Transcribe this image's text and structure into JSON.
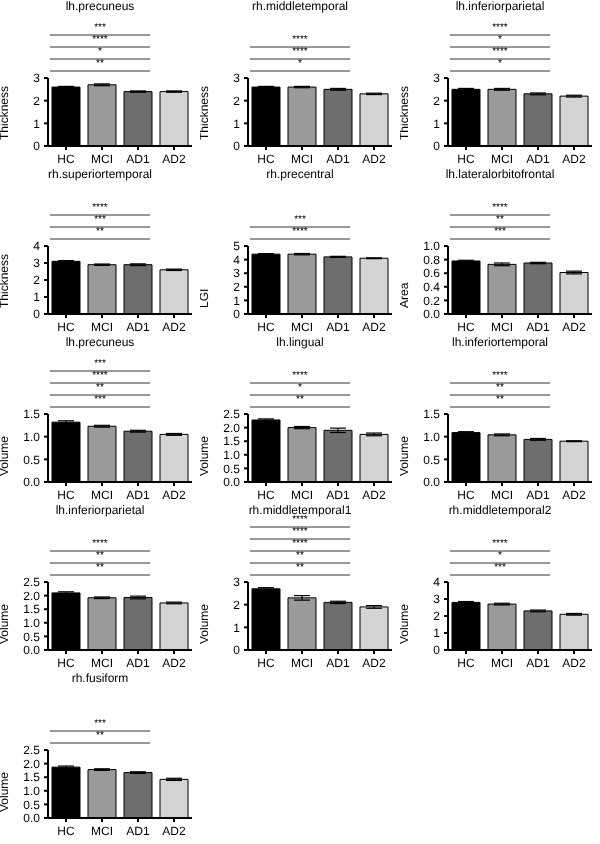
{
  "chart_data": [
    {
      "type": "bar",
      "title": "lh.precuneus",
      "ylabel": "Thickness",
      "categories": [
        "HC",
        "MCI",
        "AD1",
        "AD2"
      ],
      "values": [
        2.6,
        2.7,
        2.4,
        2.4
      ],
      "errors": [
        0.03,
        0.04,
        0.03,
        0.03
      ],
      "colors": [
        "#000000",
        "#9a9a9a",
        "#6e6e6e",
        "#d4d4d4"
      ],
      "ylim": [
        0,
        3
      ],
      "yticks": [
        0,
        1,
        2,
        3
      ],
      "annotations": [
        "***",
        "****",
        "*",
        "**"
      ]
    },
    {
      "type": "bar",
      "title": "rh.middletemporal",
      "ylabel": "Thickness",
      "categories": [
        "HC",
        "MCI",
        "AD1",
        "AD2"
      ],
      "values": [
        2.6,
        2.6,
        2.5,
        2.3
      ],
      "errors": [
        0.03,
        0.03,
        0.04,
        0.03
      ],
      "colors": [
        "#000000",
        "#9a9a9a",
        "#6e6e6e",
        "#d4d4d4"
      ],
      "ylim": [
        0,
        3
      ],
      "yticks": [
        0,
        1,
        2,
        3
      ],
      "annotations": [
        "****",
        "****",
        "*"
      ]
    },
    {
      "type": "bar",
      "title": "lh.inferiorparietal",
      "ylabel": "Thickness",
      "categories": [
        "HC",
        "MCI",
        "AD1",
        "AD2"
      ],
      "values": [
        2.5,
        2.5,
        2.3,
        2.2
      ],
      "errors": [
        0.04,
        0.04,
        0.04,
        0.04
      ],
      "colors": [
        "#000000",
        "#9a9a9a",
        "#6e6e6e",
        "#d4d4d4"
      ],
      "ylim": [
        0,
        3
      ],
      "yticks": [
        0,
        1,
        2,
        3
      ],
      "annotations": [
        "****",
        "*",
        "****",
        "*"
      ]
    },
    {
      "type": "bar",
      "title": "rh.superiortemporal",
      "ylabel": "Thickness",
      "categories": [
        "HC",
        "MCI",
        "AD1",
        "AD2"
      ],
      "values": [
        3.1,
        2.9,
        2.9,
        2.6
      ],
      "errors": [
        0.04,
        0.04,
        0.05,
        0.04
      ],
      "colors": [
        "#000000",
        "#9a9a9a",
        "#6e6e6e",
        "#d4d4d4"
      ],
      "ylim": [
        0,
        4
      ],
      "yticks": [
        0,
        1,
        2,
        3,
        4
      ],
      "annotations": [
        "****",
        "***",
        "**"
      ]
    },
    {
      "type": "bar",
      "title": "rh.precentral",
      "ylabel": "LGI",
      "categories": [
        "HC",
        "MCI",
        "AD1",
        "AD2"
      ],
      "values": [
        4.4,
        4.4,
        4.2,
        4.1
      ],
      "errors": [
        0.04,
        0.05,
        0.04,
        0.03
      ],
      "colors": [
        "#000000",
        "#9a9a9a",
        "#6e6e6e",
        "#d4d4d4"
      ],
      "ylim": [
        0,
        5
      ],
      "yticks": [
        0,
        1,
        2,
        3,
        4,
        5
      ],
      "annotations": [
        "***",
        "****"
      ]
    },
    {
      "type": "bar",
      "title": "lh.lateralorbitofrontal",
      "ylabel": "Area",
      "categories": [
        "HC",
        "MCI",
        "AD1",
        "AD2"
      ],
      "values": [
        0.78,
        0.73,
        0.75,
        0.61
      ],
      "errors": [
        0.01,
        0.02,
        0.01,
        0.02
      ],
      "colors": [
        "#000000",
        "#9a9a9a",
        "#6e6e6e",
        "#d4d4d4"
      ],
      "ylim": [
        0,
        1
      ],
      "yticks": [
        {
          "value": 0,
          "label": "0.0"
        },
        {
          "value": 0.2,
          "label": "0.2"
        },
        {
          "value": 0.4,
          "label": "0.4"
        },
        {
          "value": 0.6,
          "label": "0.6"
        },
        {
          "value": 0.8,
          "label": "0.8"
        },
        {
          "value": 1,
          "label": "1.0"
        }
      ],
      "annotations": [
        "****",
        "**",
        "***"
      ]
    },
    {
      "type": "bar",
      "title": "lh.precuneus",
      "ylabel": "Volume",
      "categories": [
        "HC",
        "MCI",
        "AD1",
        "AD2"
      ],
      "values": [
        1.32,
        1.23,
        1.12,
        1.05
      ],
      "errors": [
        0.03,
        0.02,
        0.02,
        0.02
      ],
      "colors": [
        "#000000",
        "#9a9a9a",
        "#6e6e6e",
        "#d4d4d4"
      ],
      "ylim": [
        0,
        1.5
      ],
      "yticks": [
        {
          "value": 0,
          "label": "0.0"
        },
        {
          "value": 0.5,
          "label": "0.5"
        },
        {
          "value": 1,
          "label": "1.0"
        },
        {
          "value": 1.5,
          "label": "1.5"
        }
      ],
      "annotations": [
        "***",
        "****",
        "**",
        "***"
      ]
    },
    {
      "type": "bar",
      "title": "lh.lingual",
      "ylabel": "Volume",
      "categories": [
        "HC",
        "MCI",
        "AD1",
        "AD2"
      ],
      "values": [
        2.28,
        2.0,
        1.9,
        1.75
      ],
      "errors": [
        0.04,
        0.04,
        0.08,
        0.05
      ],
      "colors": [
        "#000000",
        "#9a9a9a",
        "#6e6e6e",
        "#d4d4d4"
      ],
      "ylim": [
        0,
        2.5
      ],
      "yticks": [
        {
          "value": 0,
          "label": "0.0"
        },
        {
          "value": 0.5,
          "label": "0.5"
        },
        {
          "value": 1,
          "label": "1.0"
        },
        {
          "value": 1.5,
          "label": "1.5"
        },
        {
          "value": 2,
          "label": "2.0"
        },
        {
          "value": 2.5,
          "label": "2.5"
        }
      ],
      "annotations": [
        "****",
        "*",
        "**"
      ]
    },
    {
      "type": "bar",
      "title": "lh.inferiortemporal",
      "ylabel": "Volume",
      "categories": [
        "HC",
        "MCI",
        "AD1",
        "AD2"
      ],
      "values": [
        1.09,
        1.04,
        0.94,
        0.9
      ],
      "errors": [
        0.02,
        0.02,
        0.02,
        0.01
      ],
      "colors": [
        "#000000",
        "#9a9a9a",
        "#6e6e6e",
        "#d4d4d4"
      ],
      "ylim": [
        0,
        1.5
      ],
      "yticks": [
        {
          "value": 0,
          "label": "0.0"
        },
        {
          "value": 0.5,
          "label": "0.5"
        },
        {
          "value": 1,
          "label": "1.0"
        },
        {
          "value": 1.5,
          "label": "1.5"
        }
      ],
      "annotations": [
        "****",
        "**",
        "**"
      ]
    },
    {
      "type": "bar",
      "title": "lh.inferiorparietal",
      "ylabel": "Volume",
      "categories": [
        "HC",
        "MCI",
        "AD1",
        "AD2"
      ],
      "values": [
        2.1,
        1.92,
        1.93,
        1.73
      ],
      "errors": [
        0.04,
        0.03,
        0.05,
        0.03
      ],
      "colors": [
        "#000000",
        "#9a9a9a",
        "#6e6e6e",
        "#d4d4d4"
      ],
      "ylim": [
        0,
        2.5
      ],
      "yticks": [
        {
          "value": 0,
          "label": "0.0"
        },
        {
          "value": 0.5,
          "label": "0.5"
        },
        {
          "value": 1,
          "label": "1.0"
        },
        {
          "value": 1.5,
          "label": "1.5"
        },
        {
          "value": 2,
          "label": "2.0"
        },
        {
          "value": 2.5,
          "label": "2.5"
        }
      ],
      "annotations": [
        "****",
        "**",
        "**"
      ]
    },
    {
      "type": "bar",
      "title": "rh.middletemporal1",
      "ylabel": "Volume",
      "categories": [
        "HC",
        "MCI",
        "AD1",
        "AD2"
      ],
      "values": [
        2.7,
        2.3,
        2.1,
        1.9
      ],
      "errors": [
        0.05,
        0.1,
        0.05,
        0.06
      ],
      "colors": [
        "#000000",
        "#9a9a9a",
        "#6e6e6e",
        "#d4d4d4"
      ],
      "ylim": [
        0,
        3
      ],
      "yticks": [
        0,
        1,
        2,
        3
      ],
      "annotations": [
        "****",
        "****",
        "****",
        "**",
        "**"
      ]
    },
    {
      "type": "bar",
      "title": "rh.middletemporal2",
      "ylabel": "Volume",
      "categories": [
        "HC",
        "MCI",
        "AD1",
        "AD2"
      ],
      "values": [
        2.8,
        2.7,
        2.3,
        2.1
      ],
      "errors": [
        0.05,
        0.05,
        0.05,
        0.05
      ],
      "colors": [
        "#000000",
        "#9a9a9a",
        "#6e6e6e",
        "#d4d4d4"
      ],
      "ylim": [
        0,
        4
      ],
      "yticks": [
        0,
        1,
        2,
        3,
        4
      ],
      "annotations": [
        "****",
        "*",
        "***"
      ]
    },
    {
      "type": "bar",
      "title": "rh.fusiform",
      "ylabel": "Volume",
      "categories": [
        "HC",
        "MCI",
        "AD1",
        "AD2"
      ],
      "values": [
        1.87,
        1.78,
        1.67,
        1.42
      ],
      "errors": [
        0.04,
        0.03,
        0.03,
        0.04
      ],
      "colors": [
        "#000000",
        "#9a9a9a",
        "#6e6e6e",
        "#d4d4d4"
      ],
      "ylim": [
        0,
        2.5
      ],
      "yticks": [
        {
          "value": 0,
          "label": "0.0"
        },
        {
          "value": 0.5,
          "label": "0.5"
        },
        {
          "value": 1,
          "label": "1.0"
        },
        {
          "value": 1.5,
          "label": "1.5"
        },
        {
          "value": 2,
          "label": "2.0"
        },
        {
          "value": 2.5,
          "label": "2.5"
        }
      ],
      "annotations": [
        "***",
        "**"
      ]
    }
  ]
}
